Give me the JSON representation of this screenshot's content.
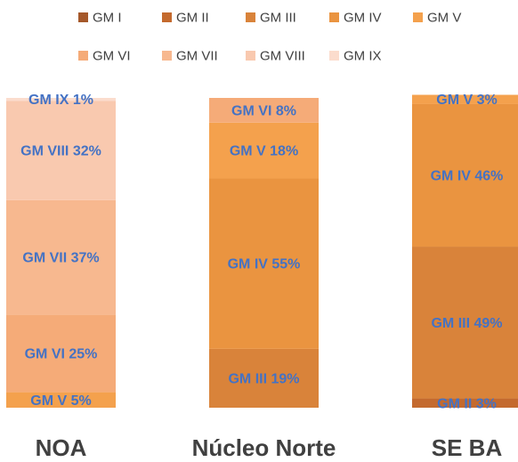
{
  "chart_data": {
    "type": "bar",
    "stacked": true,
    "percent_stacked": true,
    "categories": [
      "NOA",
      "Núcleo Norte",
      "SE BA"
    ],
    "series": [
      {
        "name": "GM I",
        "color": "#a5582a",
        "values": [
          0,
          0,
          0
        ],
        "labels": [
          "",
          "",
          ""
        ]
      },
      {
        "name": "GM II",
        "color": "#c46a2e",
        "values": [
          0,
          0,
          3
        ],
        "labels": [
          "",
          "",
          "GM II 3%"
        ]
      },
      {
        "name": "GM III",
        "color": "#d9833a",
        "values": [
          0,
          19,
          49
        ],
        "labels": [
          "",
          "GM III 19%",
          "GM III 49%"
        ]
      },
      {
        "name": "GM IV",
        "color": "#ea9440",
        "values": [
          0,
          55,
          46
        ],
        "labels": [
          "",
          "GM IV 55%",
          "GM IV 46%"
        ]
      },
      {
        "name": "GM V",
        "color": "#f4a14d",
        "values": [
          5,
          18,
          3
        ],
        "labels": [
          "GM V 5%",
          "GM V 18%",
          "GM V 3%"
        ]
      },
      {
        "name": "GM VI",
        "color": "#f5ab78",
        "values": [
          25,
          8,
          0
        ],
        "labels": [
          "GM VI 25%",
          "GM VI 8%",
          ""
        ]
      },
      {
        "name": "GM VII",
        "color": "#f7b88f",
        "values": [
          37,
          0,
          0
        ],
        "labels": [
          "GM VII 37%",
          "",
          ""
        ]
      },
      {
        "name": "GM VIII",
        "color": "#f9c9af",
        "values": [
          32,
          0,
          0
        ],
        "labels": [
          "GM VIII 32%",
          "",
          ""
        ]
      },
      {
        "name": "GM IX",
        "color": "#fbdccd",
        "values": [
          1,
          0,
          0
        ],
        "labels": [
          "GM IX 1%",
          "",
          ""
        ]
      }
    ],
    "legend_position": "top",
    "grid": false,
    "ylim": [
      0,
      100
    ]
  }
}
